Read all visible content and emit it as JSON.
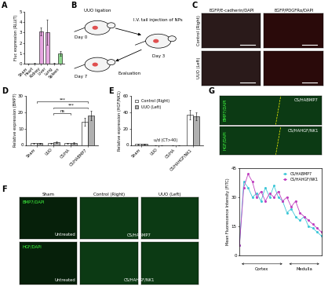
{
  "chart_data": [
    {
      "panel": "A",
      "type": "bar",
      "ylabel": "Fluc expression (RLU/T)",
      "categories": [
        "Sham",
        "Heart",
        "Kidney",
        "Liver",
        "Lung",
        "Spleen"
      ],
      "values": [
        0,
        0.05,
        3.1,
        3.0,
        0.05,
        1.0
      ],
      "errors": [
        0,
        0.02,
        0.4,
        1.2,
        0.02,
        0.2
      ],
      "colors": [
        "#ffffff",
        "#ffffff",
        "#e6a6e0",
        "#e6a6e0",
        "#ffffff",
        "#8fd88f"
      ],
      "ylim": [
        0,
        5
      ],
      "yticks": [
        0,
        1,
        2,
        3,
        4,
        5
      ],
      "grid": false
    },
    {
      "panel": "D",
      "type": "bar",
      "ylabel": "Relative expression (BMP7)",
      "categories": [
        "Sham",
        "UUO",
        "CS/HA",
        "CS/HABMP7"
      ],
      "series": [
        {
          "color": "#ffffff",
          "values": [
            1.0,
            1.0,
            1.0,
            14.0
          ],
          "errors": [
            0.2,
            0.3,
            0.3,
            2.5
          ]
        },
        {
          "color": "#b0b0b0",
          "values": [
            1.0,
            1.6,
            1.1,
            18.0
          ],
          "errors": [
            0.2,
            0.5,
            0.4,
            3.0
          ]
        }
      ],
      "annotations": [
        {
          "text": "***",
          "from": "Sham",
          "to": "CS/HABMP7"
        },
        {
          "text": "***",
          "from": "UUO",
          "to": "CS/HABMP7"
        },
        {
          "text": "ns",
          "from": "UUO",
          "to": "CS/HA"
        }
      ],
      "ylim": [
        0,
        30
      ],
      "yticks": [
        0,
        10,
        20,
        30
      ],
      "grid": false
    },
    {
      "panel": "E",
      "type": "bar",
      "ylabel": "Relative expression (HGF/NK1)",
      "categories": [
        "Sham",
        "UUO",
        "CS/HA",
        "CS/HAHGF/NK1"
      ],
      "series": [
        {
          "name": "Control (Right)",
          "color": "#ffffff",
          "values": [
            1.0,
            0,
            0,
            37.0
          ],
          "errors": [
            0.2,
            0,
            0,
            6.0
          ]
        },
        {
          "name": "UUO (Left)",
          "color": "#b0b0b0",
          "values": [
            1.0,
            0,
            0,
            35.0
          ],
          "errors": [
            0.2,
            0,
            0,
            5.0
          ]
        }
      ],
      "annotations": [
        {
          "text": "u/d (CT>40)",
          "at": "UUO"
        }
      ],
      "legend": "upper left",
      "ylim": [
        0,
        60
      ],
      "yticks": [
        0,
        20,
        40,
        60
      ],
      "grid": false
    },
    {
      "panel": "G",
      "type": "line",
      "ylabel": "Mean Fluorescence Intensity (FITC)",
      "x": [
        0,
        1,
        2,
        3,
        4,
        5,
        6,
        7,
        8,
        9,
        10,
        11,
        12,
        13,
        14,
        15,
        16,
        17,
        18,
        19
      ],
      "series": [
        {
          "name": "CS/HABMP7",
          "color": "#40c8d8",
          "marker": "o",
          "values": [
            5,
            38,
            35,
            30,
            32,
            28,
            35,
            30,
            36,
            30,
            28,
            22,
            24,
            20,
            18,
            20,
            15,
            14,
            12,
            10
          ]
        },
        {
          "name": "CS/HAHGF/NK1",
          "color": "#c040c0",
          "marker": "o",
          "values": [
            5,
            35,
            42,
            38,
            30,
            33,
            28,
            32,
            30,
            33,
            28,
            30,
            25,
            28,
            22,
            20,
            18,
            16,
            14,
            12
          ]
        }
      ],
      "x_annotations": [
        "Cortex",
        "Medulla"
      ],
      "legend": "upper right",
      "tick_labels": "y",
      "xlim": [
        0,
        19
      ],
      "ylim": [
        0,
        45
      ],
      "yticks": [
        0,
        15,
        30,
        45
      ],
      "grid": false
    }
  ],
  "diagram_B": {
    "panel": "B",
    "texts": {
      "ligation": "UUO ligation",
      "day0": "Day 0",
      "injection": "I.V. tail injection of NPs",
      "day3": "Day 3",
      "day7": "Day 7",
      "evaluation": "Evaluation"
    }
  },
  "images": {
    "C": {
      "panel": "C",
      "columns": [
        "EGFP/E-cadherin/DAPI",
        "EGFP/PDGFRα/DAPI"
      ],
      "rows": [
        "Control (Right)",
        "UUO (Left)"
      ]
    },
    "F": {
      "panel": "F",
      "columns": [
        "Sham",
        "Control (Right)",
        "UUO (Left)"
      ],
      "rows": [
        {
          "stain": "BMP7/DAPI",
          "labels": [
            "Untreated",
            "CS/HABMP7"
          ]
        },
        {
          "stain": "HGF/DAPI",
          "labels": [
            "Untreated",
            "CS/HAHGF/NK1"
          ]
        }
      ]
    },
    "G": {
      "panel": "G",
      "rows": [
        {
          "stain": "BMP7/DAPI",
          "label": "CS/HABMP7"
        },
        {
          "stain": "HGF/DAPI",
          "label": "CS/HAHGF/NK1"
        }
      ]
    }
  }
}
